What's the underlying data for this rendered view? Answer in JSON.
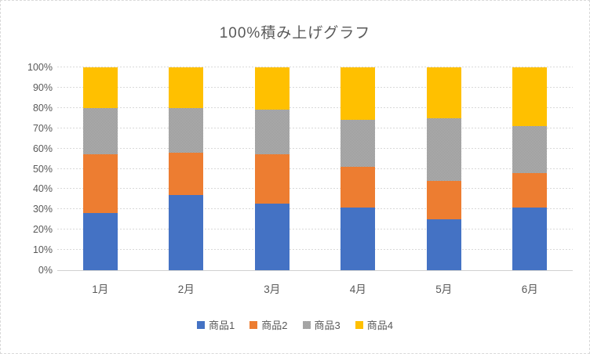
{
  "chart": {
    "title": "100%積み上げグラフ",
    "background_color": "#ffffff",
    "border_color": "#d9d9d9",
    "text_color": "#595959",
    "gridline_color": "#d9d9d9"
  },
  "chart_data": {
    "type": "bar",
    "stacked": true,
    "percent_stacked": true,
    "title": "100%積み上げグラフ",
    "categories": [
      "1月",
      "2月",
      "3月",
      "4月",
      "5月",
      "6月"
    ],
    "series": [
      {
        "name": "商品1",
        "color": "#4472C4",
        "pattern": "solid",
        "values": [
          28,
          37,
          33,
          31,
          25,
          31
        ]
      },
      {
        "name": "商品2",
        "color": "#ED7D31",
        "pattern": "solid",
        "values": [
          29,
          21,
          24,
          20,
          19,
          17
        ]
      },
      {
        "name": "商品3",
        "color": "#A5A5A5",
        "pattern": "checker",
        "values": [
          23,
          22,
          22,
          23,
          31,
          23
        ]
      },
      {
        "name": "商品4",
        "color": "#FFC000",
        "pattern": "solid",
        "values": [
          20,
          20,
          21,
          26,
          25,
          29
        ]
      }
    ],
    "cumulative_tops_percent": {
      "1月": [
        28,
        57,
        80,
        100
      ],
      "2月": [
        37,
        58,
        80,
        100
      ],
      "3月": [
        33,
        57,
        79,
        100
      ],
      "4月": [
        31,
        51,
        74,
        100
      ],
      "5月": [
        25,
        44,
        75,
        100
      ],
      "6月": [
        31,
        48,
        71,
        100
      ]
    },
    "xlabel": "",
    "ylabel": "",
    "ylim": [
      0,
      100
    ],
    "yticks": [
      "0%",
      "10%",
      "20%",
      "30%",
      "40%",
      "50%",
      "60%",
      "70%",
      "80%",
      "90%",
      "100%"
    ],
    "grid": "horizontal-dashed",
    "legend_position": "bottom"
  }
}
